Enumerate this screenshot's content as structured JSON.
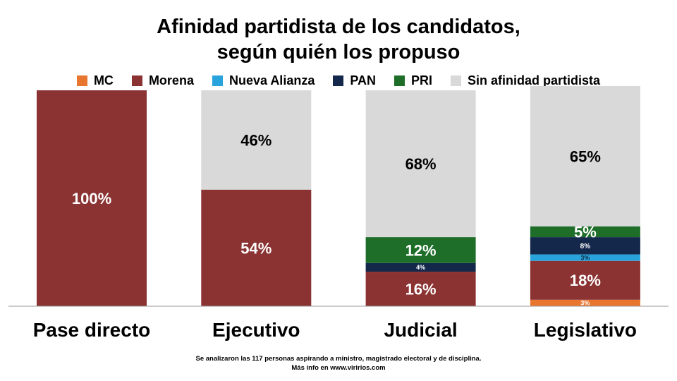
{
  "title": [
    "Afinidad partidista de los candidatos,",
    "según quién los propuso"
  ],
  "footnote": [
    "Se analizaron las 117 personas  aspirando a ministro, magistrado electoral y de disciplina.",
    "Más info en www.viririos.com"
  ],
  "chart_data": {
    "type": "bar",
    "stacked": true,
    "categories": [
      "Pase directo",
      "Ejecutivo",
      "Judicial",
      "Legislativo"
    ],
    "series": [
      {
        "name": "MC",
        "color": "#e8762f",
        "values": [
          0,
          0,
          0,
          3
        ],
        "labels": [
          "",
          "",
          "",
          "3%"
        ]
      },
      {
        "name": "Morena",
        "color": "#8b3333",
        "values": [
          100,
          54,
          16,
          18
        ],
        "labels": [
          "100%",
          "54%",
          "16%",
          "18%"
        ]
      },
      {
        "name": "Nueva Alianza",
        "color": "#29a3dc",
        "values": [
          0,
          0,
          0,
          3
        ],
        "labels": [
          "",
          "",
          "",
          "3%"
        ]
      },
      {
        "name": "PAN",
        "color": "#14284b",
        "values": [
          0,
          0,
          4,
          8
        ],
        "labels": [
          "",
          "",
          "4%",
          "8%"
        ]
      },
      {
        "name": "PRI",
        "color": "#1e6e2a",
        "values": [
          0,
          0,
          12,
          5
        ],
        "labels": [
          "",
          "",
          "12%",
          "5%"
        ]
      },
      {
        "name": "Sin afinidad partidista",
        "color": "#d9d9d9",
        "values": [
          0,
          46,
          68,
          65
        ],
        "labels": [
          "",
          "46%",
          "68%",
          "65%"
        ]
      }
    ],
    "ylim": [
      0,
      100
    ],
    "legend_position": "top",
    "grid": false
  }
}
